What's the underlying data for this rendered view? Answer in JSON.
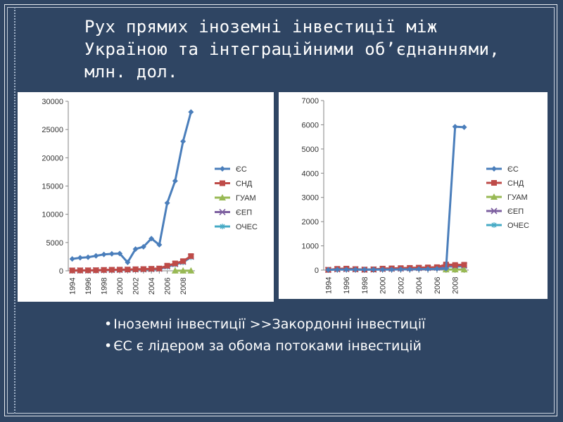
{
  "title": {
    "line1": "Рух прямих іноземні інвестиції між",
    "line2": "Україною та інтеграційними об’єднаннями,",
    "line3": "млн. дол."
  },
  "bullets": [
    "Іноземні інвестиції >>Закордонні інвестиції",
    "ЄС є лідером за обома потоками інвестицій"
  ],
  "colors": {
    "background": "#2f4563",
    "ЄС": "#4a7ebb",
    "СНД": "#be4b48",
    "ГУАМ": "#98b954",
    "ЄЕП": "#7d60a0",
    "ОЧЕС": "#46aac5"
  },
  "chart_data": [
    {
      "type": "line",
      "title": "",
      "xlabel": "",
      "ylabel": "",
      "x": [
        1994,
        1995,
        1996,
        1997,
        1998,
        1999,
        2000,
        2001,
        2002,
        2003,
        2004,
        2005,
        2006,
        2007,
        2008,
        2009
      ],
      "x_tick_labels": [
        "1994",
        "1996",
        "1998",
        "2000",
        "2002",
        "2004",
        "2006",
        "2008"
      ],
      "x_tick_values": [
        1994,
        1996,
        1998,
        2000,
        2002,
        2004,
        2006,
        2008
      ],
      "ylim": [
        0,
        30000
      ],
      "y_ticks": [
        0,
        5000,
        10000,
        15000,
        20000,
        25000,
        30000
      ],
      "grid": false,
      "legend": "right",
      "series": [
        {
          "name": "ЄС",
          "marker": "diamond",
          "values": [
            2100,
            2300,
            2400,
            2650,
            2900,
            3000,
            3050,
            1500,
            3850,
            4250,
            5700,
            4600,
            12000,
            15900,
            22900,
            28100
          ]
        },
        {
          "name": "СНД",
          "marker": "square",
          "values": [
            60,
            70,
            80,
            100,
            150,
            180,
            200,
            220,
            270,
            300,
            350,
            400,
            900,
            1300,
            1700,
            2600
          ]
        },
        {
          "name": "ГУАМ",
          "marker": "triangle",
          "values": [
            null,
            null,
            null,
            null,
            null,
            null,
            null,
            null,
            null,
            null,
            null,
            null,
            null,
            10,
            10,
            10
          ]
        },
        {
          "name": "ЄЕП",
          "marker": "x",
          "values": [
            40,
            50,
            60,
            80,
            120,
            150,
            170,
            190,
            230,
            260,
            300,
            350,
            800,
            1200,
            1600,
            2500
          ]
        },
        {
          "name": "ОЧЕС",
          "marker": "star",
          "values": [
            30,
            40,
            50,
            60,
            90,
            110,
            130,
            150,
            180,
            210,
            250,
            300,
            700,
            1100,
            1500,
            2400
          ]
        }
      ]
    },
    {
      "type": "line",
      "title": "",
      "xlabel": "",
      "ylabel": "",
      "x": [
        1994,
        1995,
        1996,
        1997,
        1998,
        1999,
        2000,
        2001,
        2002,
        2003,
        2004,
        2005,
        2006,
        2007,
        2008,
        2009
      ],
      "x_tick_labels": [
        "1994",
        "1996",
        "1998",
        "2000",
        "2002",
        "2004",
        "2006",
        "2008"
      ],
      "x_tick_values": [
        1994,
        1996,
        1998,
        2000,
        2002,
        2004,
        2006,
        2008
      ],
      "ylim": [
        0,
        7000
      ],
      "y_ticks": [
        0,
        1000,
        2000,
        3000,
        4000,
        5000,
        6000,
        7000
      ],
      "grid": false,
      "legend": "right",
      "series": [
        {
          "name": "ЄС",
          "marker": "diamond",
          "values": [
            10,
            20,
            20,
            20,
            20,
            20,
            20,
            20,
            30,
            30,
            40,
            40,
            50,
            60,
            5920,
            5900
          ]
        },
        {
          "name": "СНД",
          "marker": "square",
          "values": [
            10,
            50,
            60,
            40,
            20,
            30,
            60,
            70,
            80,
            90,
            100,
            110,
            120,
            230,
            210,
            220
          ]
        },
        {
          "name": "ГУАМ",
          "marker": "triangle",
          "values": [
            null,
            null,
            null,
            null,
            null,
            null,
            null,
            null,
            null,
            null,
            null,
            null,
            null,
            20,
            20,
            20
          ]
        },
        {
          "name": "ЄЕП",
          "marker": "x",
          "values": [
            10,
            30,
            40,
            30,
            15,
            25,
            45,
            55,
            65,
            75,
            85,
            90,
            100,
            180,
            170,
            190
          ]
        },
        {
          "name": "ОЧЕС",
          "marker": "star",
          "values": [
            5,
            20,
            30,
            20,
            10,
            20,
            30,
            40,
            50,
            60,
            70,
            80,
            90,
            150,
            140,
            160
          ]
        }
      ]
    }
  ]
}
